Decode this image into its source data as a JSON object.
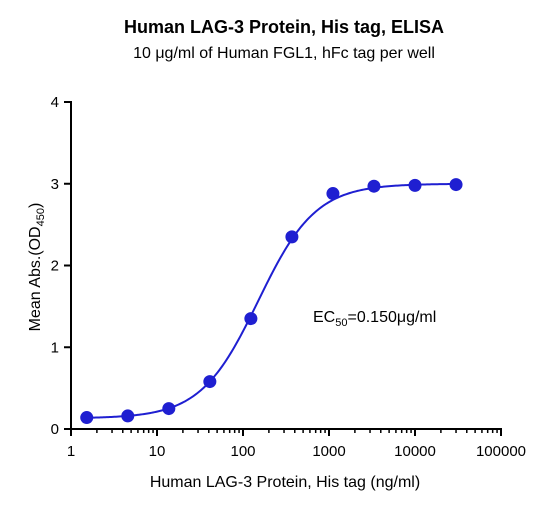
{
  "chart_data": {
    "type": "scatter",
    "title": "Human LAG-3 Protein, His tag, ELISA",
    "subtitle": "10 μg/ml of Human FGL1, hFc tag per well",
    "xlabel": "Human LAG-3 Protein, His tag (ng/ml)",
    "ylabel": {
      "main": "Mean Abs.(OD",
      "sub": "450",
      "close": ")"
    },
    "xscale": "log",
    "xlim": [
      1,
      100000
    ],
    "ylim": [
      0,
      4
    ],
    "xticks": [
      1,
      10,
      100,
      1000,
      10000,
      100000
    ],
    "xtick_labels": [
      "1",
      "10",
      "100",
      "1000",
      "10000",
      "100000"
    ],
    "yticks": [
      0,
      1,
      2,
      3,
      4
    ],
    "ytick_labels": [
      "0",
      "1",
      "2",
      "3",
      "4"
    ],
    "grid": false,
    "series": [
      {
        "x": [
          1.524,
          4.572,
          13.72,
          41.15,
          123.5,
          370.4,
          1111,
          3333,
          10000,
          30000
        ],
        "y": [
          0.14,
          0.16,
          0.25,
          0.58,
          1.35,
          2.35,
          2.88,
          2.97,
          2.98,
          2.99
        ],
        "color": "#1f1fd1",
        "fit": {
          "model": "4PL",
          "bottom": 0.13,
          "top": 3.0,
          "ec50": 150,
          "hill": 1.3
        }
      }
    ],
    "annotation": {
      "main": "EC",
      "sub": "50",
      "rest": "=0.150μg/ml"
    }
  }
}
